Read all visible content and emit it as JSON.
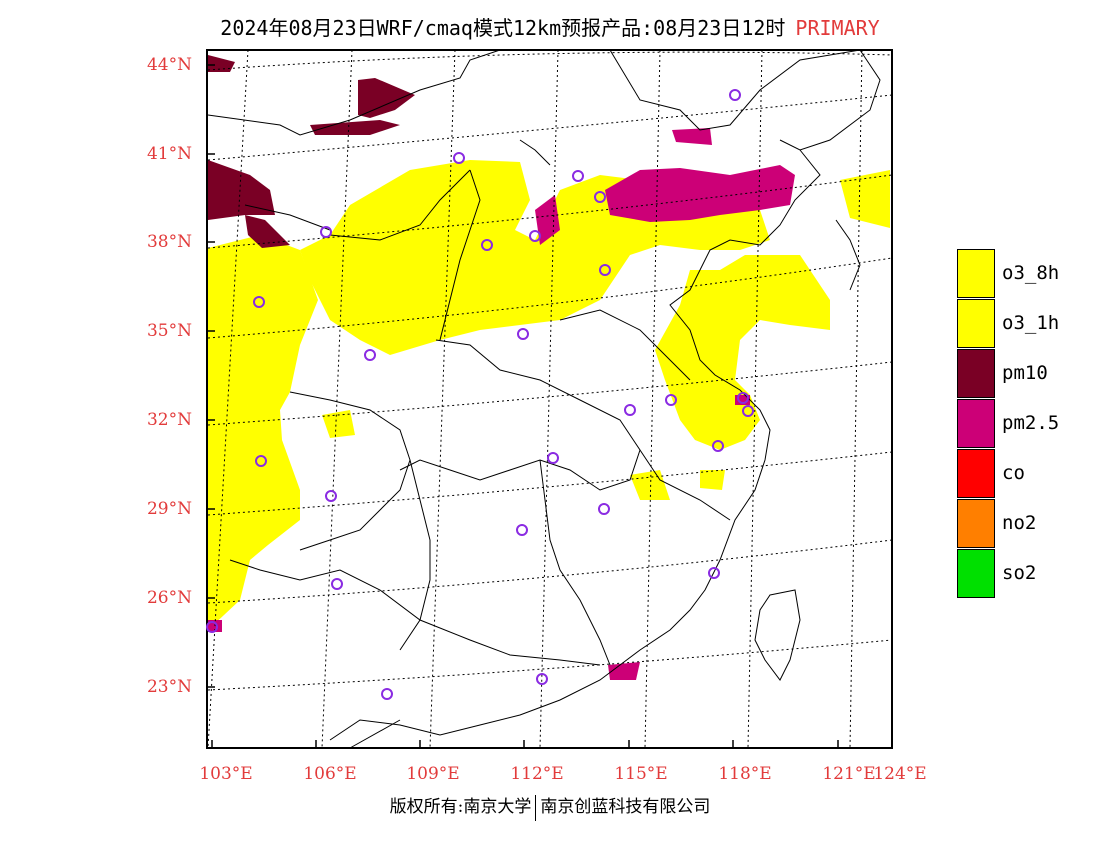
{
  "title": {
    "main": "2024年08月23日WRF/cmaq模式12km预报产品:08月23日12时",
    "tag": "PRIMARY"
  },
  "axes": {
    "lat_labels": [
      "44°N",
      "41°N",
      "38°N",
      "35°N",
      "32°N",
      "29°N",
      "26°N",
      "23°N"
    ],
    "lon_labels": [
      "103°E",
      "106°E",
      "109°E",
      "112°E",
      "115°E",
      "118°E",
      "121°E",
      "124°E"
    ]
  },
  "legend": [
    {
      "label": "o3_8h",
      "color": "#ffff00"
    },
    {
      "label": "o3_1h",
      "color": "#ffff00"
    },
    {
      "label": "pm10",
      "color": "#7a0025"
    },
    {
      "label": "pm2.5",
      "color": "#cc0077"
    },
    {
      "label": "co",
      "color": "#ff0000"
    },
    {
      "label": "no2",
      "color": "#ff7f00"
    },
    {
      "label": "so2",
      "color": "#00e000"
    }
  ],
  "colors": {
    "o3": "#ffff00",
    "pm10": "#7a0025",
    "pm25": "#cc0077",
    "site": "#8a2be2",
    "label": "#e23b3b"
  },
  "footer": {
    "left": "版权所有:南京大学",
    "right": "南京创蓝科技有限公司"
  }
}
